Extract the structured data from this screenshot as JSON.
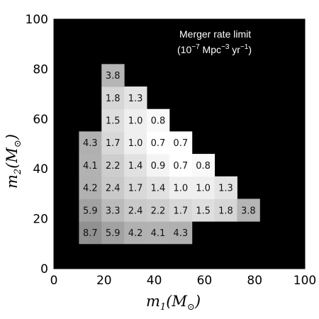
{
  "chart_data": {
    "type": "heatmap",
    "annotation": {
      "line1": "Merger rate limit",
      "line2_prefix": "(10",
      "line2_exp1": "−7",
      "line2_mid": " Mpc",
      "line2_exp2": "−3",
      "line2_mid2": " yr",
      "line2_exp3": "−1",
      "line2_suffix": ")"
    },
    "xlabel": {
      "main": "m",
      "sub": "1",
      "paren_open": "(M",
      "msub": "⊙",
      "paren_close": ")"
    },
    "ylabel": {
      "main": "m",
      "sub": "2",
      "paren_open": "(M",
      "msub": "⊙",
      "paren_close": ")"
    },
    "xlim": [
      0,
      100
    ],
    "ylim": [
      0,
      100
    ],
    "xticks": [
      "0",
      "20",
      "40",
      "60",
      "80",
      "100"
    ],
    "yticks": [
      "0",
      "20",
      "40",
      "60",
      "80",
      "100"
    ],
    "cell_size": 9,
    "background_color": "#000000",
    "cells": [
      {
        "x": 14.5,
        "y": 14.5,
        "value": 8.7,
        "label": "8.7"
      },
      {
        "x": 23.5,
        "y": 14.5,
        "value": 5.9,
        "label": "5.9"
      },
      {
        "x": 32.5,
        "y": 14.5,
        "value": 4.2,
        "label": "4.2"
      },
      {
        "x": 41.5,
        "y": 14.5,
        "value": 4.1,
        "label": "4.1"
      },
      {
        "x": 50.5,
        "y": 14.5,
        "value": 4.3,
        "label": "4.3"
      },
      {
        "x": 14.5,
        "y": 23.5,
        "value": 5.9,
        "label": "5.9"
      },
      {
        "x": 23.5,
        "y": 23.5,
        "value": 3.3,
        "label": "3.3"
      },
      {
        "x": 32.5,
        "y": 23.5,
        "value": 2.4,
        "label": "2.4"
      },
      {
        "x": 41.5,
        "y": 23.5,
        "value": 2.2,
        "label": "2.2"
      },
      {
        "x": 50.5,
        "y": 23.5,
        "value": 1.7,
        "label": "1.7"
      },
      {
        "x": 59.5,
        "y": 23.5,
        "value": 1.5,
        "label": "1.5"
      },
      {
        "x": 68.5,
        "y": 23.5,
        "value": 1.8,
        "label": "1.8"
      },
      {
        "x": 77.5,
        "y": 23.5,
        "value": 3.8,
        "label": "3.8"
      },
      {
        "x": 14.5,
        "y": 32.5,
        "value": 4.2,
        "label": "4.2"
      },
      {
        "x": 23.5,
        "y": 32.5,
        "value": 2.4,
        "label": "2.4"
      },
      {
        "x": 32.5,
        "y": 32.5,
        "value": 1.7,
        "label": "1.7"
      },
      {
        "x": 41.5,
        "y": 32.5,
        "value": 1.4,
        "label": "1.4"
      },
      {
        "x": 50.5,
        "y": 32.5,
        "value": 1.0,
        "label": "1.0"
      },
      {
        "x": 59.5,
        "y": 32.5,
        "value": 1.0,
        "label": "1.0"
      },
      {
        "x": 68.5,
        "y": 32.5,
        "value": 1.3,
        "label": "1.3"
      },
      {
        "x": 14.5,
        "y": 41.5,
        "value": 4.1,
        "label": "4.1"
      },
      {
        "x": 23.5,
        "y": 41.5,
        "value": 2.2,
        "label": "2.2"
      },
      {
        "x": 32.5,
        "y": 41.5,
        "value": 1.4,
        "label": "1.4"
      },
      {
        "x": 41.5,
        "y": 41.5,
        "value": 0.9,
        "label": "0.9"
      },
      {
        "x": 50.5,
        "y": 41.5,
        "value": 0.7,
        "label": "0.7"
      },
      {
        "x": 59.5,
        "y": 41.5,
        "value": 0.8,
        "label": "0.8"
      },
      {
        "x": 14.5,
        "y": 50.5,
        "value": 4.3,
        "label": "4.3"
      },
      {
        "x": 23.5,
        "y": 50.5,
        "value": 1.7,
        "label": "1.7"
      },
      {
        "x": 32.5,
        "y": 50.5,
        "value": 1.0,
        "label": "1.0"
      },
      {
        "x": 41.5,
        "y": 50.5,
        "value": 0.7,
        "label": "0.7"
      },
      {
        "x": 50.5,
        "y": 50.5,
        "value": 0.7,
        "label": "0.7"
      },
      {
        "x": 23.5,
        "y": 59.5,
        "value": 1.5,
        "label": "1.5"
      },
      {
        "x": 32.5,
        "y": 59.5,
        "value": 1.0,
        "label": "1.0"
      },
      {
        "x": 41.5,
        "y": 59.5,
        "value": 0.8,
        "label": "0.8"
      },
      {
        "x": 23.5,
        "y": 68.5,
        "value": 1.8,
        "label": "1.8"
      },
      {
        "x": 32.5,
        "y": 68.5,
        "value": 1.3,
        "label": "1.3"
      },
      {
        "x": 23.5,
        "y": 77.5,
        "value": 3.8,
        "label": "3.8"
      }
    ]
  }
}
